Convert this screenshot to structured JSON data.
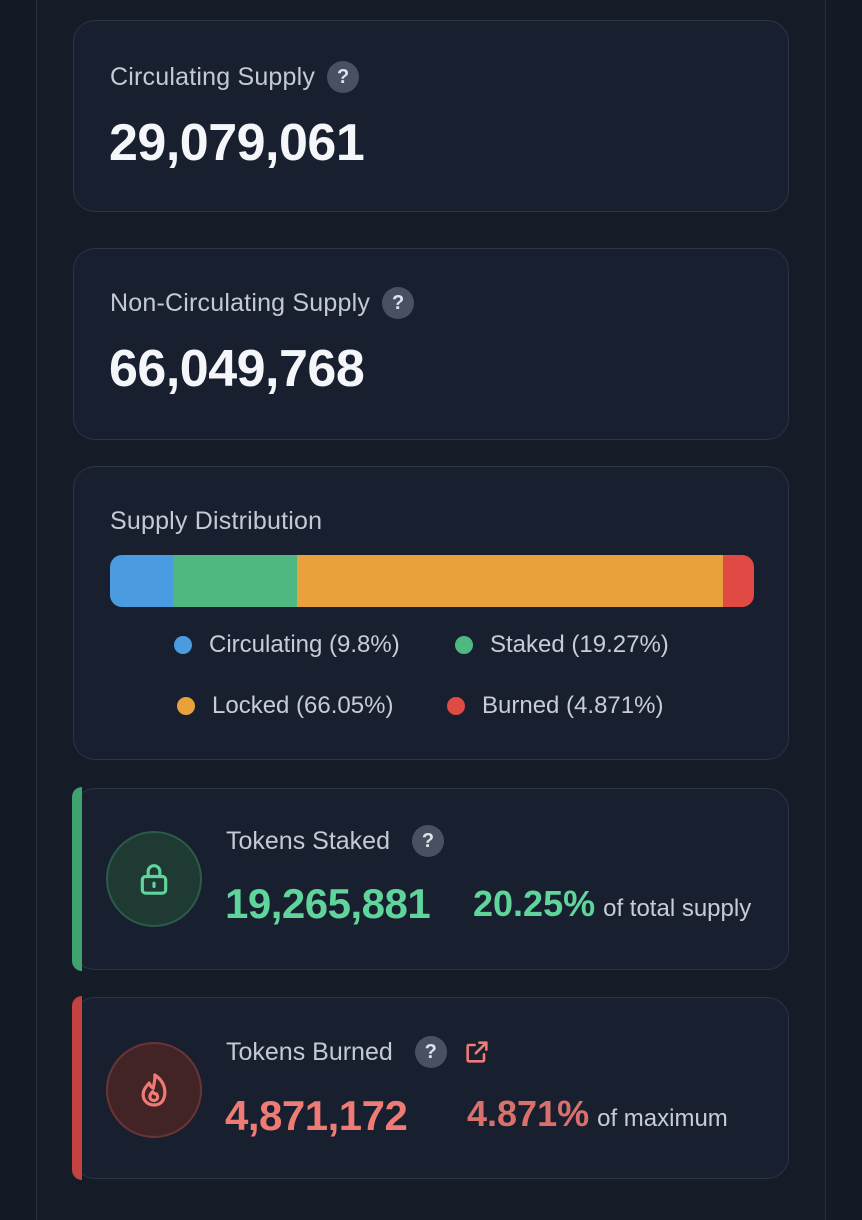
{
  "circulating_supply": {
    "label": "Circulating Supply",
    "help": "?",
    "value": "29,079,061"
  },
  "non_circulating_supply": {
    "label": "Non-Circulating Supply",
    "help": "?",
    "value": "66,049,768"
  },
  "supply_distribution": {
    "title": "Supply Distribution",
    "segments": [
      {
        "key": "circulating",
        "legend": "Circulating (9.8%)",
        "percent": 9.8,
        "color": "#4a9be0"
      },
      {
        "key": "staked",
        "legend": "Staked (19.27%)",
        "percent": 19.27,
        "color": "#4fb882"
      },
      {
        "key": "locked",
        "legend": "Locked (66.05%)",
        "percent": 66.05,
        "color": "#e9a23b"
      },
      {
        "key": "burned",
        "legend": "Burned (4.871%)",
        "percent": 4.871,
        "color": "#df4a44"
      }
    ]
  },
  "tokens_staked": {
    "title": "Tokens Staked",
    "help": "?",
    "icon": "lock-icon",
    "value": "19,265,881",
    "percent": "20.25%",
    "suffix": "of total supply",
    "color": "#5fd49b",
    "accent": "#3fa36f"
  },
  "tokens_burned": {
    "title": "Tokens Burned",
    "help": "?",
    "icon": "flame-icon",
    "link_icon": "external-link-icon",
    "value": "4,871,172",
    "percent": "4.871%",
    "suffix": "of maximum",
    "color": "#ef7b74",
    "accent": "#c2433f"
  }
}
